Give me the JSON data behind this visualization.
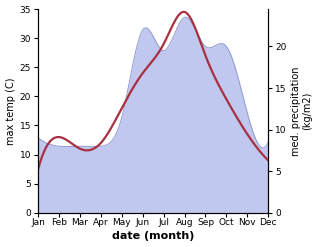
{
  "months": [
    "Jan",
    "Feb",
    "Mar",
    "Apr",
    "May",
    "Jun",
    "Jul",
    "Aug",
    "Sep",
    "Oct",
    "Nov",
    "Dec"
  ],
  "temp_C": [
    7.5,
    13.0,
    11.0,
    12.0,
    18.0,
    24.0,
    29.0,
    34.5,
    27.0,
    19.5,
    13.5,
    9.0
  ],
  "precip_mm": [
    9.0,
    8.0,
    8.0,
    8.0,
    11.5,
    22.0,
    19.5,
    23.5,
    20.0,
    20.0,
    12.0,
    8.5
  ],
  "temp_color": "#a83040",
  "precip_fill_color": "#c0c8f0",
  "precip_line_color": "#9098d0",
  "ylabel_left": "max temp (C)",
  "ylabel_right": "med. precipitation\n(kg/m2)",
  "xlabel": "date (month)",
  "ylim_left": [
    0,
    35
  ],
  "ylim_right": [
    0,
    24.5
  ],
  "yticks_left": [
    0,
    5,
    10,
    15,
    20,
    25,
    30,
    35
  ],
  "yticks_right": [
    0,
    5,
    10,
    15,
    20
  ],
  "bg_color": "#ffffff"
}
